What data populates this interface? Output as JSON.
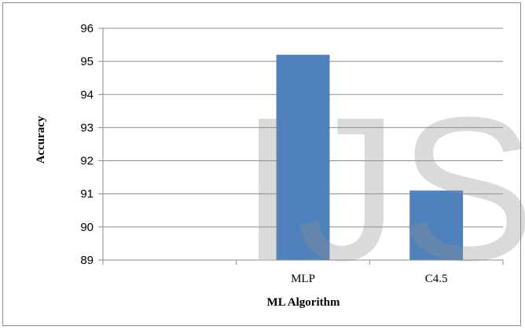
{
  "chart_data": {
    "type": "bar",
    "title": "",
    "xlabel": "ML Algorithm",
    "ylabel": "Accuracy",
    "categories": [
      "",
      "MLP",
      "C4.5"
    ],
    "values": [
      null,
      95.2,
      91.1
    ],
    "ylim": [
      89,
      96
    ],
    "yticks": [
      "89",
      "90",
      "91",
      "92",
      "93",
      "94",
      "95",
      "96"
    ],
    "grid": true,
    "legend": "none",
    "bar_color": "#4f81bd"
  },
  "watermark": "IJS"
}
